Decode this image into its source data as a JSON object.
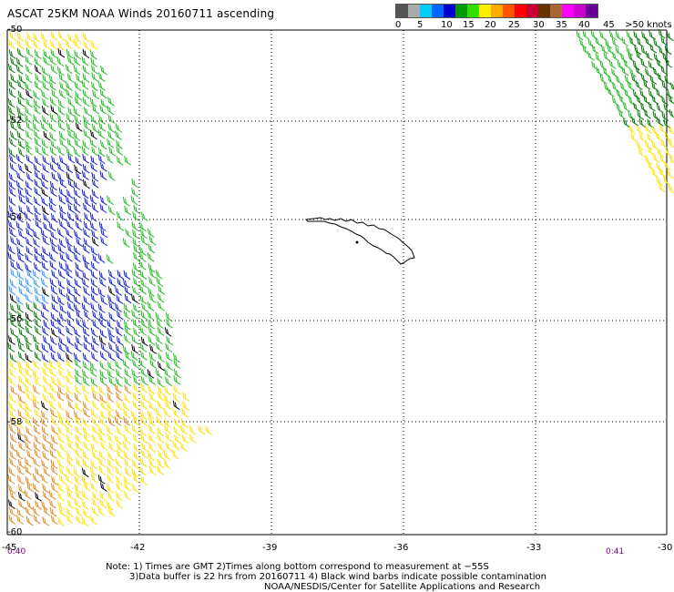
{
  "title": "ASCAT 25KM NOAA Winds 20160711 ascending",
  "scale": {
    "labels": [
      "0",
      "5",
      "10",
      "15",
      "20",
      "25",
      "30",
      "35",
      "40",
      "45",
      ">50 knots"
    ],
    "colors": [
      "#555555",
      "#aaaaaa",
      "#00ccff",
      "#0066ff",
      "#0000cc",
      "#009900",
      "#33dd00",
      "#ffee00",
      "#ffaa00",
      "#ff5500",
      "#ff0000",
      "#cc0033",
      "#663300",
      "#aa6633",
      "#ff00ff",
      "#cc00cc",
      "#660099"
    ]
  },
  "map": {
    "lat_labels": [
      "-50",
      "-52",
      "-54",
      "-56",
      "-58",
      "-60"
    ],
    "lon_labels": [
      "-45",
      "-42",
      "-39",
      "-36",
      "-33",
      "-30"
    ],
    "lat_range": [
      -60,
      -50
    ],
    "lon_range": [
      -45,
      -30
    ],
    "feature": "South Georgia island coastline",
    "grid": "dotted"
  },
  "times": {
    "left": "0:40",
    "right": "0:41"
  },
  "notes": {
    "line1": "Note: 1) Times are GMT 2)Times along bottom correspond to measurement at −55S",
    "line2": "3)Data buffer is 22 hrs from 20160711 4) Black wind barbs indicate possible contamination",
    "line3": "NOAA/NESDIS/Center for Satellite Applications and Research"
  },
  "wind_colors": {
    "blue": "#1020d0",
    "light_blue": "#3399ff",
    "green": "#22bb22",
    "dark_green": "#007700",
    "yellow": "#ffe000",
    "orange": "#e08a20",
    "black": "#000000"
  }
}
